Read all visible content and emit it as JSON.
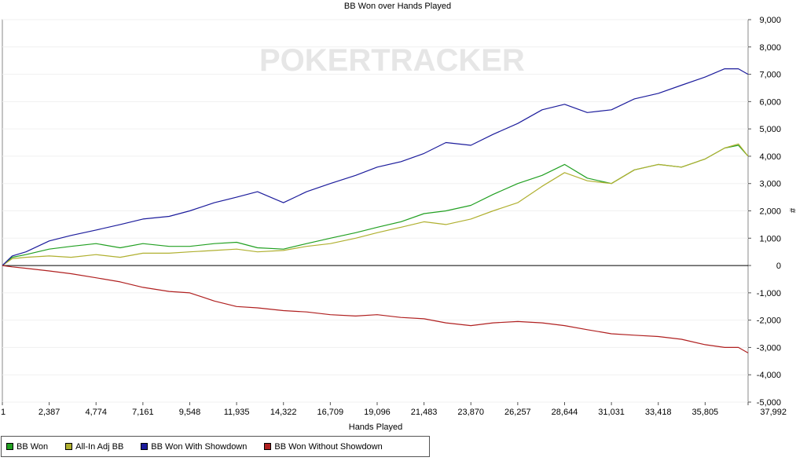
{
  "chart_data": {
    "type": "line",
    "title": "BB Won over Hands Played",
    "xlabel": "Hands Played",
    "ylabel": "#",
    "watermark": "POKERTRACKER",
    "xlim": [
      1,
      37992
    ],
    "ylim": [
      -5000,
      9000
    ],
    "x_ticks": [
      1,
      2387,
      4774,
      7161,
      9548,
      11935,
      14322,
      16709,
      19096,
      21483,
      23870,
      26257,
      28644,
      31031,
      33418,
      35805,
      37992
    ],
    "x_tick_labels": [
      "1",
      "2,387",
      "4,774",
      "7,161",
      "9,548",
      "11,935",
      "14,322",
      "16,709",
      "19,096",
      "21,483",
      "23,870",
      "26,257",
      "28,644",
      "31,031",
      "33,418",
      "35,805",
      "37,992"
    ],
    "y_ticks": [
      9000,
      8000,
      7000,
      6000,
      5000,
      4000,
      3000,
      2000,
      1000,
      0,
      -1000,
      -2000,
      -3000,
      -4000,
      -5000
    ],
    "y_tick_labels": [
      "9,000",
      "8,000",
      "7,000",
      "6,000",
      "5,000",
      "4,000",
      "3,000",
      "2,000",
      "1,000",
      "0",
      "-1,000",
      "-2,000",
      "-3,000",
      "-4,000",
      "-5,000"
    ],
    "grid": "horizontal",
    "legend_position": "bottom-left",
    "series": [
      {
        "name": "BB Won",
        "color": "#22a022",
        "x": [
          1,
          500,
          1200,
          2387,
          3500,
          4774,
          6000,
          7161,
          8500,
          9548,
          10800,
          11935,
          13000,
          14322,
          15500,
          16709,
          18000,
          19096,
          20300,
          21483,
          22600,
          23870,
          25000,
          26257,
          27500,
          28644,
          29800,
          31031,
          32200,
          33418,
          34600,
          35805,
          36800,
          37500,
          37992
        ],
        "values": [
          0,
          300,
          400,
          600,
          700,
          800,
          650,
          800,
          700,
          700,
          800,
          850,
          650,
          600,
          800,
          1000,
          1200,
          1400,
          1600,
          1900,
          2000,
          2200,
          2600,
          3000,
          3300,
          3700,
          3200,
          3000,
          3500,
          3700,
          3600,
          3900,
          4300,
          4400,
          4000
        ]
      },
      {
        "name": "All-In Adj BB",
        "color": "#b0b030",
        "x": [
          1,
          500,
          1200,
          2387,
          3500,
          4774,
          6000,
          7161,
          8500,
          9548,
          10800,
          11935,
          13000,
          14322,
          15500,
          16709,
          18000,
          19096,
          20300,
          21483,
          22600,
          23870,
          25000,
          26257,
          27500,
          28644,
          29800,
          31031,
          32200,
          33418,
          34600,
          35805,
          36800,
          37500,
          37992
        ],
        "values": [
          0,
          250,
          300,
          350,
          300,
          400,
          300,
          450,
          450,
          500,
          550,
          600,
          500,
          550,
          700,
          800,
          1000,
          1200,
          1400,
          1600,
          1500,
          1700,
          2000,
          2300,
          2900,
          3400,
          3100,
          3000,
          3500,
          3700,
          3600,
          3900,
          4300,
          4450,
          4000
        ]
      },
      {
        "name": "BB Won With Showdown",
        "color": "#1c1c9c",
        "x": [
          1,
          500,
          1200,
          2387,
          3500,
          4774,
          6000,
          7161,
          8500,
          9548,
          10800,
          11935,
          13000,
          14322,
          15500,
          16709,
          18000,
          19096,
          20300,
          21483,
          22600,
          23870,
          25000,
          26257,
          27500,
          28644,
          29800,
          31031,
          32200,
          33418,
          34600,
          35805,
          36800,
          37500,
          37992
        ],
        "values": [
          0,
          350,
          500,
          900,
          1100,
          1300,
          1500,
          1700,
          1800,
          2000,
          2300,
          2500,
          2700,
          2300,
          2700,
          3000,
          3300,
          3600,
          3800,
          4100,
          4500,
          4400,
          4800,
          5200,
          5700,
          5900,
          5600,
          5700,
          6100,
          6300,
          6600,
          6900,
          7200,
          7200,
          7000
        ]
      },
      {
        "name": "BB Won Without Showdown",
        "color": "#b02020",
        "x": [
          1,
          500,
          1200,
          2387,
          3500,
          4774,
          6000,
          7161,
          8500,
          9548,
          10800,
          11935,
          13000,
          14322,
          15500,
          16709,
          18000,
          19096,
          20300,
          21483,
          22600,
          23870,
          25000,
          26257,
          27500,
          28644,
          29800,
          31031,
          32200,
          33418,
          34600,
          35805,
          36800,
          37500,
          37992
        ],
        "values": [
          0,
          -50,
          -100,
          -200,
          -300,
          -450,
          -600,
          -800,
          -950,
          -1000,
          -1300,
          -1500,
          -1550,
          -1650,
          -1700,
          -1800,
          -1850,
          -1800,
          -1900,
          -1950,
          -2100,
          -2200,
          -2100,
          -2050,
          -2100,
          -2200,
          -2350,
          -2500,
          -2550,
          -2600,
          -2700,
          -2900,
          -3000,
          -3000,
          -3200
        ]
      }
    ]
  }
}
